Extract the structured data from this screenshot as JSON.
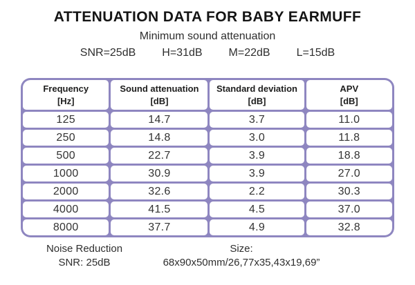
{
  "header": {
    "title": "ATTENUATION DATA FOR BABY EARMUFF",
    "subtitle": "Minimum sound attenuation",
    "params": [
      "SNR=25dB",
      "H=31dB",
      "M=22dB",
      "L=15dB"
    ]
  },
  "table": {
    "headers": [
      {
        "label": "Frequency",
        "unit": "[Hz]"
      },
      {
        "label": "Sound attenuation",
        "unit": "[dB]"
      },
      {
        "label": "Standard deviation",
        "unit": "[dB]"
      },
      {
        "label": "APV",
        "unit": "[dB]"
      }
    ],
    "rows": [
      {
        "cells": [
          "125",
          "14.7",
          "3.7",
          "11.0"
        ]
      },
      {
        "cells": [
          "250",
          "14.8",
          "3.0",
          "11.8"
        ]
      },
      {
        "cells": [
          "500",
          "22.7",
          "3.9",
          "18.8"
        ]
      },
      {
        "cells": [
          "1000",
          "30.9",
          "3.9",
          "27.0"
        ]
      },
      {
        "cells": [
          "2000",
          "32.6",
          "2.2",
          "30.3"
        ]
      },
      {
        "cells": [
          "4000",
          "41.5",
          "4.5",
          "37.0"
        ]
      },
      {
        "cells": [
          "8000",
          "37.7",
          "4.9",
          "32.8"
        ]
      }
    ],
    "border_color": "#8e86c0"
  },
  "footer": {
    "noise_reduction": {
      "line1": "Noise Reduction",
      "line2": "SNR: 25dB"
    },
    "size": {
      "line1": "Size:",
      "line2": "68x90x50mm/26,77x35,43x19,69”"
    }
  },
  "chart_data": {
    "type": "table",
    "title": "ATTENUATION DATA FOR BABY EARMUFF",
    "subtitle": "Minimum sound attenuation",
    "summary_values": {
      "SNR": "25dB",
      "H": "31dB",
      "M": "22dB",
      "L": "15dB"
    },
    "columns": [
      "Frequency [Hz]",
      "Sound attenuation [dB]",
      "Standard deviation [dB]",
      "APV [dB]"
    ],
    "rows": [
      [
        125,
        14.7,
        3.7,
        11.0
      ],
      [
        250,
        14.8,
        3.0,
        11.8
      ],
      [
        500,
        22.7,
        3.9,
        18.8
      ],
      [
        1000,
        30.9,
        3.9,
        27.0
      ],
      [
        2000,
        32.6,
        2.2,
        30.3
      ],
      [
        4000,
        41.5,
        4.5,
        37.0
      ],
      [
        8000,
        37.7,
        4.9,
        32.8
      ]
    ],
    "notes": [
      "Noise Reduction SNR: 25dB",
      "Size: 68x90x50mm/26,77x35,43x19,69”"
    ]
  }
}
